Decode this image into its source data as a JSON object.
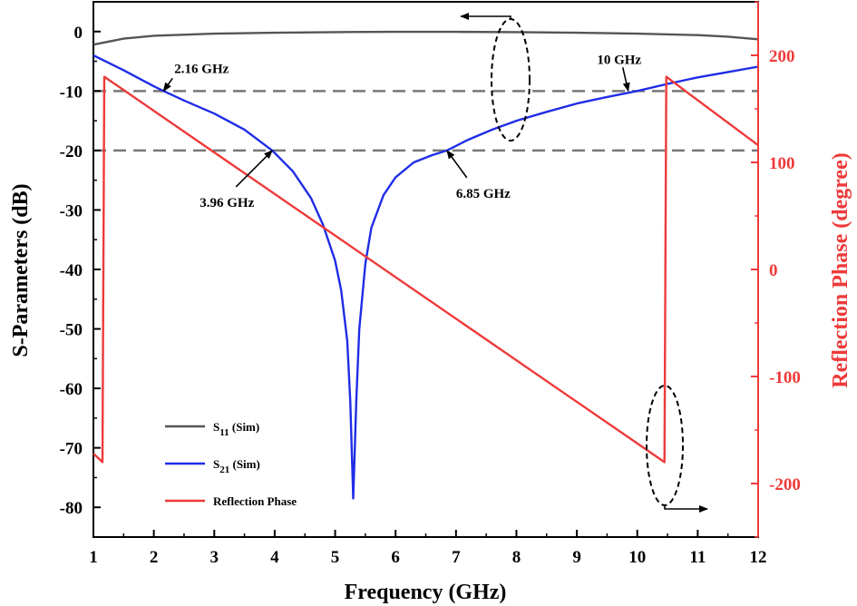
{
  "chart_data": {
    "type": "line",
    "xlabel": "Frequency (GHz)",
    "ylabel_left": "S-Parameters (dB)",
    "ylabel_right": "Reflection Phase (degree)",
    "xlim": [
      1,
      12
    ],
    "ylim_left": [
      -85,
      5
    ],
    "ylim_right": [
      -250,
      250
    ],
    "xticks": [
      1,
      2,
      3,
      4,
      5,
      6,
      7,
      8,
      9,
      10,
      11,
      12
    ],
    "yticks_left": [
      0,
      -10,
      -20,
      -30,
      -40,
      -50,
      -60,
      -70,
      -80
    ],
    "yticks_right": [
      200,
      100,
      0,
      -100,
      -200
    ],
    "grid": false,
    "legend_position": "bottom-left",
    "colors": {
      "s11": "#555555",
      "s21": "#1f2de6",
      "phase": "#ee3a3a",
      "right_axis": "#ee3a3a",
      "reference": "#777777"
    },
    "reference_lines_db": [
      -10,
      -20
    ],
    "series": [
      {
        "name": "S11 (Sim)",
        "axis": "left",
        "x": [
          1.0,
          1.5,
          2.0,
          3.0,
          4.0,
          5.0,
          6.0,
          7.0,
          8.0,
          9.0,
          10.0,
          11.0,
          11.5,
          12.0
        ],
        "y": [
          -2.2,
          -1.2,
          -0.7,
          -0.35,
          -0.2,
          -0.1,
          -0.05,
          -0.05,
          -0.1,
          -0.2,
          -0.35,
          -0.6,
          -0.85,
          -1.3
        ]
      },
      {
        "name": "S21 (Sim)",
        "axis": "left",
        "x": [
          1.0,
          1.5,
          2.0,
          2.16,
          2.5,
          3.0,
          3.5,
          3.96,
          4.3,
          4.6,
          4.8,
          5.0,
          5.1,
          5.2,
          5.25,
          5.3,
          5.35,
          5.4,
          5.5,
          5.6,
          5.8,
          6.0,
          6.3,
          6.6,
          6.85,
          7.2,
          7.6,
          8.0,
          8.5,
          9.0,
          9.5,
          10.0,
          10.5,
          11.0,
          11.5,
          12.0
        ],
        "y": [
          -4.0,
          -6.5,
          -9.2,
          -10.0,
          -11.6,
          -13.8,
          -16.5,
          -20.0,
          -23.5,
          -28.0,
          -32.5,
          -38.5,
          -43.5,
          -52.0,
          -62.0,
          -78.5,
          -62.0,
          -50.0,
          -39.0,
          -33.0,
          -27.5,
          -24.5,
          -22.0,
          -20.8,
          -20.0,
          -18.2,
          -16.5,
          -15.0,
          -13.5,
          -12.1,
          -11.0,
          -10.0,
          -8.8,
          -7.7,
          -6.8,
          -5.9
        ]
      },
      {
        "name": "Reflection Phase",
        "axis": "right",
        "x": [
          1.0,
          1.15,
          1.18,
          10.45,
          10.48,
          12.0
        ],
        "y": [
          -172,
          -180,
          180,
          -180,
          180,
          116
        ]
      }
    ],
    "annotations": [
      {
        "text": "2.16 GHz",
        "x": 2.16,
        "y": -10
      },
      {
        "text": "3.96 GHz",
        "x": 3.96,
        "y": -20
      },
      {
        "text": "6.85 GHz",
        "x": 6.85,
        "y": -20
      },
      {
        "text": "10 GHz",
        "x": 9.85,
        "y": -10
      }
    ],
    "legend": [
      {
        "series": "S11 (Sim)",
        "main": "S",
        "sub": "11",
        "rest": " (Sim)"
      },
      {
        "series": "S21 (Sim)",
        "main": "S",
        "sub": "21",
        "rest": " (Sim)"
      },
      {
        "series": "Reflection Phase",
        "main": "Reflection Phase",
        "sub": "",
        "rest": ""
      }
    ]
  }
}
